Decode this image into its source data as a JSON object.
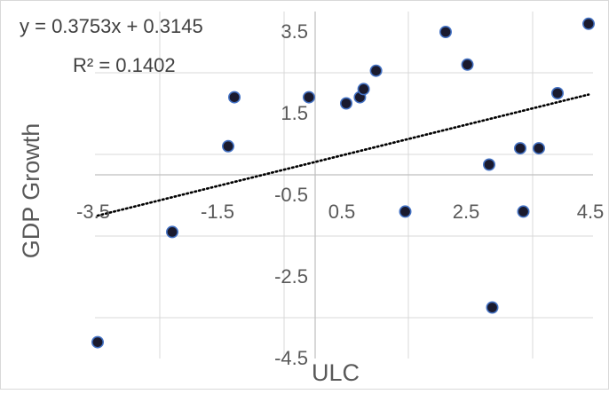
{
  "chart_data": {
    "type": "scatter",
    "title": "",
    "xlabel": "ULC",
    "ylabel": "GDP Growth",
    "xlim": [
      -3.5,
      4.5
    ],
    "ylim": [
      -4.5,
      4.0
    ],
    "x_ticks": [
      "-3.5",
      "-1.5",
      "0.5",
      "2.5",
      "4.5"
    ],
    "x_tick_values": [
      -3.5,
      -1.5,
      0.5,
      2.5,
      4.5
    ],
    "y_ticks": [
      "3.5",
      "1.5",
      "-0.5",
      "-2.5",
      "-4.5"
    ],
    "y_tick_values": [
      3.5,
      1.5,
      -0.5,
      -2.5,
      -4.5
    ],
    "grid": true,
    "trendline": {
      "style": "dotted",
      "slope": 0.3753,
      "intercept": 0.3145,
      "equation": "y = 0.3753x + 0.3145",
      "r_squared": "R² = 0.1402"
    },
    "marker_color": "#1a1a2e",
    "marker_edge": "#4472c4",
    "points": [
      {
        "x": -3.5,
        "y": -4.1
      },
      {
        "x": -2.3,
        "y": -1.4
      },
      {
        "x": -1.4,
        "y": 0.7
      },
      {
        "x": -1.3,
        "y": 1.9
      },
      {
        "x": -0.1,
        "y": 1.9
      },
      {
        "x": 0.5,
        "y": 1.75
      },
      {
        "x": 0.72,
        "y": 1.9
      },
      {
        "x": 0.78,
        "y": 2.1
      },
      {
        "x": 0.98,
        "y": 2.55
      },
      {
        "x": 1.45,
        "y": -0.9
      },
      {
        "x": 2.1,
        "y": 3.5
      },
      {
        "x": 2.45,
        "y": 2.7
      },
      {
        "x": 2.8,
        "y": 0.25
      },
      {
        "x": 2.85,
        "y": -3.25
      },
      {
        "x": 3.3,
        "y": 0.65
      },
      {
        "x": 3.35,
        "y": -0.9
      },
      {
        "x": 3.6,
        "y": 0.65
      },
      {
        "x": 3.9,
        "y": 2.0
      },
      {
        "x": 4.4,
        "y": 3.7
      }
    ]
  }
}
